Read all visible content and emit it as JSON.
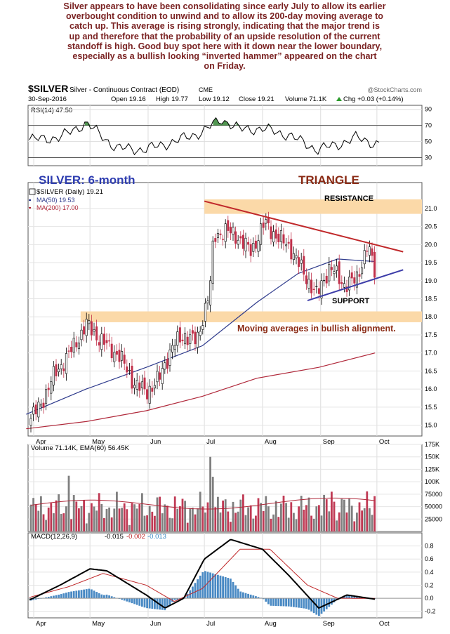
{
  "commentary": [
    "Silver appears to have been consolidating since early July to allow its earlier",
    "overbought condition to unwind and to allow its 200-day moving average to",
    "catch up. This average is rising strongly, indicating that the major trend is",
    "up and therefore that the probability of an upside resolution of the current",
    "standoff is high. Good buy spot here with it down near the lower boundary,",
    "especially as a bullish looking “inverted hammer” appeared on the chart",
    "on Friday."
  ],
  "header": {
    "symbol": "$SILVER",
    "description": "Silver - Continuous Contract (EOD)",
    "exchange": "CME",
    "watermark": "@StockCharts.com",
    "date": "30-Sep-2016",
    "open": "Open 19.16",
    "high": "High 19.77",
    "low": "Low 19.12",
    "close": "Close 19.21",
    "volume": "Volume 71.1K",
    "change": "Chg +0.03 (+0.14%)",
    "change_icon": "triangle-up"
  },
  "colors": {
    "commentary": "#7a2323",
    "up_candle": "#000000",
    "down_candle": "#c0304a",
    "ma50": "#2e3a8c",
    "ma200": "#b0283a",
    "resistance_line": "#c0282a",
    "support_line": "#3c3ca8",
    "band": "#fbd9a8",
    "title_blue": "#2e3db0",
    "triangle_label": "#8a2a14",
    "volume_up": "#7f7f7f",
    "volume_down": "#c03a55",
    "macd_hist": "#4a8ac4",
    "rsi_fill": "#3d8a3d"
  },
  "chart_data": [
    {
      "type": "line",
      "panel": "RSI(14)",
      "legend": "RSI(14) 47.50",
      "ylim": [
        20,
        95
      ],
      "yticks": [
        30,
        50,
        70,
        90
      ],
      "reference_lines": [
        30,
        70
      ],
      "x_dates": [
        "2016-03-28",
        "2016-04-15",
        "2016-04-29",
        "2016-05-15",
        "2016-05-30",
        "2016-06-15",
        "2016-06-30",
        "2016-07-10",
        "2016-07-20",
        "2016-08-01",
        "2016-08-15",
        "2016-08-30",
        "2016-09-10",
        "2016-09-20",
        "2016-09-30"
      ],
      "values": [
        52,
        55,
        73,
        42,
        40,
        50,
        62,
        78,
        65,
        66,
        58,
        40,
        46,
        55,
        47.5
      ]
    },
    {
      "type": "candlestick",
      "panel": "price",
      "legend": [
        "$SILVER (Daily) 19.21",
        "MA(50) 19.53",
        "MA(200) 17.00"
      ],
      "title": "SILVER: 6-month",
      "annotation_triangle": "TRIANGLE",
      "annotation_resistance": "RESISTANCE",
      "annotation_support": "SUPPORT",
      "annotation_ma": "Moving averages in bullish alignment.",
      "x_labels": [
        "Apr",
        "May",
        "Jun",
        "Jul",
        "Aug",
        "Sep",
        "Oct"
      ],
      "ylim": [
        14.7,
        21.6
      ],
      "yticks": [
        "15.0",
        "15.5",
        "16.0",
        "16.5",
        "17.0",
        "17.5",
        "18.0",
        "18.5",
        "19.0",
        "19.5",
        "20.0",
        "20.5",
        "21.0"
      ],
      "close_path": {
        "dates": [
          "2016-03-28",
          "2016-04-05",
          "2016-04-12",
          "2016-04-19",
          "2016-04-26",
          "2016-04-29",
          "2016-05-04",
          "2016-05-10",
          "2016-05-17",
          "2016-05-24",
          "2016-05-31",
          "2016-06-07",
          "2016-06-14",
          "2016-06-21",
          "2016-06-27",
          "2016-07-04",
          "2016-07-06",
          "2016-07-12",
          "2016-07-19",
          "2016-07-26",
          "2016-08-02",
          "2016-08-09",
          "2016-08-16",
          "2016-08-23",
          "2016-08-30",
          "2016-09-06",
          "2016-09-13",
          "2016-09-20",
          "2016-09-26",
          "2016-09-30"
        ],
        "closes": [
          15.0,
          15.6,
          16.4,
          16.9,
          17.5,
          17.8,
          17.5,
          17.2,
          16.9,
          16.2,
          15.9,
          16.3,
          17.2,
          17.5,
          17.3,
          18.8,
          20.2,
          20.4,
          20.2,
          19.8,
          20.6,
          20.2,
          19.9,
          19.2,
          18.6,
          19.4,
          18.9,
          19.0,
          20.0,
          19.21
        ]
      },
      "ma50": {
        "dates": [
          "2016-03-28",
          "2016-04-29",
          "2016-05-31",
          "2016-06-30",
          "2016-07-29",
          "2016-08-20",
          "2016-09-10",
          "2016-09-30"
        ],
        "values": [
          15.3,
          16.0,
          16.6,
          17.2,
          18.4,
          19.2,
          19.6,
          19.53
        ]
      },
      "ma200": {
        "dates": [
          "2016-03-28",
          "2016-04-29",
          "2016-05-31",
          "2016-06-30",
          "2016-07-29",
          "2016-08-31",
          "2016-09-30"
        ],
        "values": [
          14.9,
          15.1,
          15.4,
          15.8,
          16.3,
          16.6,
          17.0
        ]
      },
      "resistance_band": [
        20.85,
        21.25
      ],
      "support_band": [
        17.85,
        18.15
      ],
      "triangle_upper": {
        "dates": [
          "2016-07-01",
          "2016-10-15"
        ],
        "values": [
          21.2,
          19.8
        ]
      },
      "triangle_lower": {
        "dates": [
          "2016-08-25",
          "2016-10-15"
        ],
        "values": [
          18.45,
          19.3
        ]
      }
    },
    {
      "type": "bar",
      "panel": "volume",
      "legend": "Volume 71.14K, EMA(60) 56.45K",
      "ylim": [
        0,
        175000
      ],
      "yticks": [
        "25000",
        "50000",
        "75000",
        "100K",
        "125K",
        "150K",
        "175K"
      ],
      "ema60_approx": 56450,
      "notable": [
        {
          "date": "2016-04-20",
          "value": 112000
        },
        {
          "date": "2016-07-04",
          "value": 150000
        },
        {
          "date": "2016-07-05",
          "value": 110000
        },
        {
          "date": "2016-09-07",
          "value": 80000
        },
        {
          "date": "2016-09-30",
          "value": 71140
        }
      ]
    },
    {
      "type": "line",
      "panel": "MACD",
      "legend": [
        "MACD(12,26,9)",
        "-0.015",
        "-0.002",
        "-0.013"
      ],
      "ylim": [
        -0.3,
        1.0
      ],
      "yticks": [
        "-0.2",
        "0.0",
        "0.2",
        "0.4",
        "0.6",
        "0.8"
      ],
      "macd": {
        "dates": [
          "2016-03-28",
          "2016-04-15",
          "2016-05-01",
          "2016-05-10",
          "2016-05-31",
          "2016-06-10",
          "2016-06-20",
          "2016-07-01",
          "2016-07-15",
          "2016-08-01",
          "2016-08-15",
          "2016-08-31",
          "2016-09-15",
          "2016-09-30"
        ],
        "values": [
          -0.05,
          0.2,
          0.45,
          0.42,
          0.05,
          -0.15,
          0.0,
          0.6,
          0.9,
          0.75,
          0.35,
          -0.15,
          0.05,
          -0.015
        ]
      },
      "signal": {
        "dates": [
          "2016-03-28",
          "2016-04-20",
          "2016-05-08",
          "2016-05-31",
          "2016-06-15",
          "2016-06-30",
          "2016-07-20",
          "2016-08-05",
          "2016-08-25",
          "2016-09-10",
          "2016-09-30"
        ],
        "values": [
          0.0,
          0.18,
          0.38,
          0.2,
          -0.05,
          0.15,
          0.75,
          0.75,
          0.2,
          0.0,
          -0.002
        ]
      }
    }
  ]
}
